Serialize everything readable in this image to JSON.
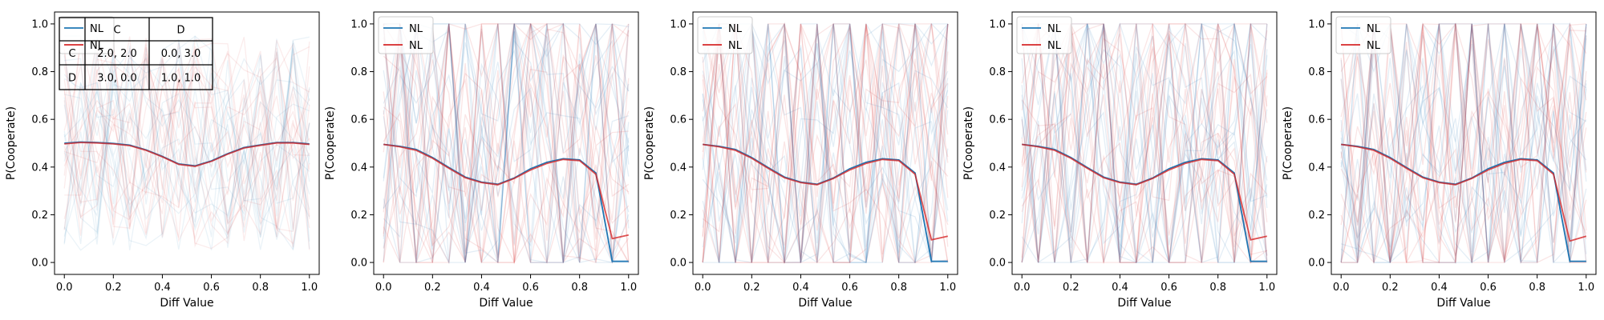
{
  "chart_data": [
    {
      "type": "line",
      "xlabel": "Diff Value",
      "ylabel": "P(Cooperate)",
      "xlim": [
        -0.04,
        1.04
      ],
      "ylim": [
        -0.05,
        1.05
      ],
      "xticks": [
        0.0,
        0.2,
        0.4,
        0.6,
        0.8,
        1.0
      ],
      "xtick_labels": [
        "0.0",
        "0.2",
        "0.4",
        "0.6",
        "0.8",
        "1.0"
      ],
      "yticks": [
        0.0,
        0.2,
        0.4,
        0.6,
        0.8,
        1.0
      ],
      "ytick_labels": [
        "0.0",
        "0.2",
        "0.4",
        "0.6",
        "0.8",
        "1.0"
      ],
      "legend_placement": "top-left",
      "x": [
        0.0,
        0.0667,
        0.1333,
        0.2,
        0.2667,
        0.3333,
        0.4,
        0.4667,
        0.5333,
        0.6,
        0.6667,
        0.7333,
        0.8,
        0.8667,
        0.9333,
        1.0
      ],
      "series": [
        {
          "name": "NL",
          "color": "#1f77b4",
          "values": [
            0.5,
            0.505,
            0.503,
            0.499,
            0.492,
            0.472,
            0.445,
            0.413,
            0.405,
            0.426,
            0.456,
            0.482,
            0.493,
            0.503,
            0.503,
            0.497
          ]
        },
        {
          "name": "NL",
          "color": "#d62728",
          "values": [
            0.497,
            0.503,
            0.501,
            0.497,
            0.49,
            0.47,
            0.443,
            0.411,
            0.403,
            0.424,
            0.454,
            0.48,
            0.491,
            0.501,
            0.501,
            0.495
          ]
        }
      ],
      "payoff_table": {
        "col_headers": [
          "C",
          "D"
        ],
        "rows": [
          {
            "label": "C",
            "cells": [
              "2.0, 2.0",
              "0.0, 3.0"
            ]
          },
          {
            "label": "D",
            "cells": [
              "3.0, 0.0",
              "1.0, 1.0"
            ]
          }
        ]
      }
    },
    {
      "type": "line",
      "xlabel": "Diff Value",
      "ylabel": "P(Cooperate)",
      "xlim": [
        -0.04,
        1.04
      ],
      "ylim": [
        -0.05,
        1.05
      ],
      "xticks": [
        0.0,
        0.2,
        0.4,
        0.6,
        0.8,
        1.0
      ],
      "xtick_labels": [
        "0.0",
        "0.2",
        "0.4",
        "0.6",
        "0.8",
        "1.0"
      ],
      "yticks": [
        0.0,
        0.2,
        0.4,
        0.6,
        0.8,
        1.0
      ],
      "ytick_labels": [
        "0.0",
        "0.2",
        "0.4",
        "0.6",
        "0.8",
        "1.0"
      ],
      "legend_placement": "top-left",
      "x": [
        0.0,
        0.0667,
        0.1333,
        0.2,
        0.2667,
        0.3333,
        0.4,
        0.4667,
        0.5333,
        0.6,
        0.6667,
        0.7333,
        0.8,
        0.8667,
        0.9333,
        1.0
      ],
      "series": [
        {
          "name": "NL",
          "color": "#1f77b4",
          "values": [
            0.495,
            0.487,
            0.474,
            0.44,
            0.398,
            0.358,
            0.337,
            0.328,
            0.354,
            0.393,
            0.42,
            0.435,
            0.43,
            0.375,
            0.005,
            0.005
          ]
        },
        {
          "name": "NL",
          "color": "#d62728",
          "values": [
            0.495,
            0.485,
            0.47,
            0.437,
            0.395,
            0.355,
            0.335,
            0.326,
            0.352,
            0.388,
            0.415,
            0.432,
            0.427,
            0.37,
            0.1,
            0.115
          ]
        }
      ]
    },
    {
      "type": "line",
      "xlabel": "Diff Value",
      "ylabel": "P(Cooperate)",
      "xlim": [
        -0.04,
        1.04
      ],
      "ylim": [
        -0.05,
        1.05
      ],
      "xticks": [
        0.0,
        0.2,
        0.4,
        0.6,
        0.8,
        1.0
      ],
      "xtick_labels": [
        "0.0",
        "0.2",
        "0.4",
        "0.6",
        "0.8",
        "1.0"
      ],
      "yticks": [
        0.0,
        0.2,
        0.4,
        0.6,
        0.8,
        1.0
      ],
      "ytick_labels": [
        "0.0",
        "0.2",
        "0.4",
        "0.6",
        "0.8",
        "1.0"
      ],
      "legend_placement": "top-left",
      "x": [
        0.0,
        0.0667,
        0.1333,
        0.2,
        0.2667,
        0.3333,
        0.4,
        0.4667,
        0.5333,
        0.6,
        0.6667,
        0.7333,
        0.8,
        0.8667,
        0.9333,
        1.0
      ],
      "series": [
        {
          "name": "NL",
          "color": "#1f77b4",
          "values": [
            0.495,
            0.487,
            0.474,
            0.44,
            0.398,
            0.358,
            0.337,
            0.328,
            0.354,
            0.393,
            0.42,
            0.435,
            0.43,
            0.375,
            0.005,
            0.005
          ]
        },
        {
          "name": "NL",
          "color": "#d62728",
          "values": [
            0.495,
            0.485,
            0.47,
            0.437,
            0.395,
            0.355,
            0.335,
            0.326,
            0.352,
            0.388,
            0.415,
            0.432,
            0.427,
            0.37,
            0.095,
            0.11
          ]
        }
      ]
    },
    {
      "type": "line",
      "xlabel": "Diff Value",
      "ylabel": "P(Cooperate)",
      "xlim": [
        -0.04,
        1.04
      ],
      "ylim": [
        -0.05,
        1.05
      ],
      "xticks": [
        0.0,
        0.2,
        0.4,
        0.6,
        0.8,
        1.0
      ],
      "xtick_labels": [
        "0.0",
        "0.2",
        "0.4",
        "0.6",
        "0.8",
        "1.0"
      ],
      "yticks": [
        0.0,
        0.2,
        0.4,
        0.6,
        0.8,
        1.0
      ],
      "ytick_labels": [
        "0.0",
        "0.2",
        "0.4",
        "0.6",
        "0.8",
        "1.0"
      ],
      "legend_placement": "top-left",
      "x": [
        0.0,
        0.0667,
        0.1333,
        0.2,
        0.2667,
        0.3333,
        0.4,
        0.4667,
        0.5333,
        0.6,
        0.6667,
        0.7333,
        0.8,
        0.8667,
        0.9333,
        1.0
      ],
      "series": [
        {
          "name": "NL",
          "color": "#1f77b4",
          "values": [
            0.495,
            0.487,
            0.474,
            0.44,
            0.398,
            0.358,
            0.337,
            0.328,
            0.354,
            0.393,
            0.42,
            0.435,
            0.43,
            0.375,
            0.005,
            0.005
          ]
        },
        {
          "name": "NL",
          "color": "#d62728",
          "values": [
            0.495,
            0.485,
            0.47,
            0.437,
            0.395,
            0.355,
            0.335,
            0.326,
            0.352,
            0.388,
            0.415,
            0.432,
            0.427,
            0.37,
            0.095,
            0.11
          ]
        }
      ]
    },
    {
      "type": "line",
      "xlabel": "Diff Value",
      "ylabel": "P(Cooperate)",
      "xlim": [
        -0.04,
        1.04
      ],
      "ylim": [
        -0.05,
        1.05
      ],
      "xticks": [
        0.0,
        0.2,
        0.4,
        0.6,
        0.8,
        1.0
      ],
      "xtick_labels": [
        "0.0",
        "0.2",
        "0.4",
        "0.6",
        "0.8",
        "1.0"
      ],
      "yticks": [
        0.0,
        0.2,
        0.4,
        0.6,
        0.8,
        1.0
      ],
      "ytick_labels": [
        "0.0",
        "0.2",
        "0.4",
        "0.6",
        "0.8",
        "1.0"
      ],
      "legend_placement": "top-left",
      "x": [
        0.0,
        0.0667,
        0.1333,
        0.2,
        0.2667,
        0.3333,
        0.4,
        0.4667,
        0.5333,
        0.6,
        0.6667,
        0.7333,
        0.8,
        0.8667,
        0.9333,
        1.0
      ],
      "series": [
        {
          "name": "NL",
          "color": "#1f77b4",
          "values": [
            0.495,
            0.487,
            0.474,
            0.44,
            0.398,
            0.358,
            0.337,
            0.328,
            0.354,
            0.393,
            0.42,
            0.435,
            0.43,
            0.375,
            0.005,
            0.005
          ]
        },
        {
          "name": "NL",
          "color": "#d62728",
          "values": [
            0.495,
            0.485,
            0.47,
            0.437,
            0.395,
            0.355,
            0.335,
            0.326,
            0.352,
            0.388,
            0.415,
            0.432,
            0.427,
            0.37,
            0.09,
            0.11
          ]
        }
      ]
    }
  ]
}
